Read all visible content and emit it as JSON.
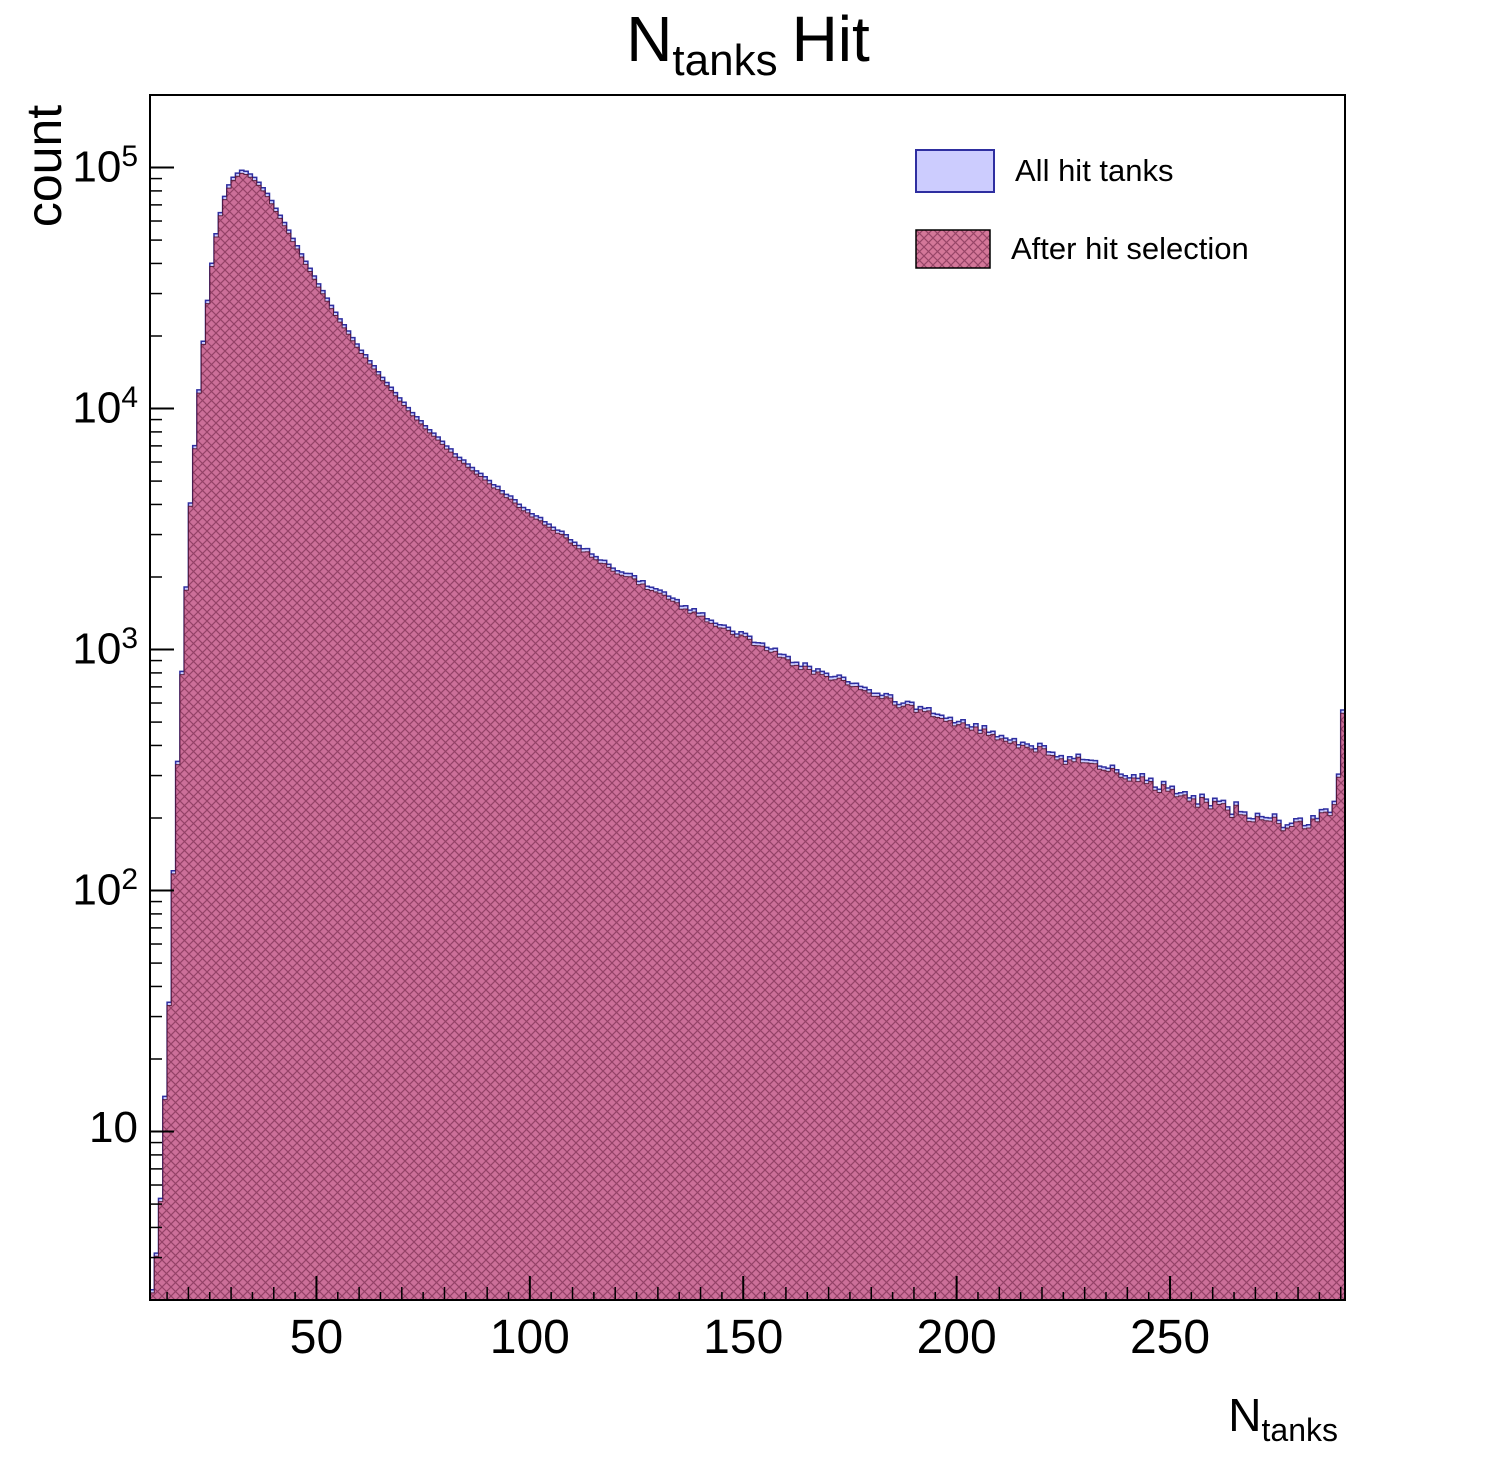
{
  "title": {
    "prefix": "N",
    "subscript": "tanks",
    "suffix": "Hit"
  },
  "y_axis": {
    "label": "count",
    "scale": "log",
    "min": 2,
    "max": 200000,
    "major_ticks": [
      10,
      100,
      1000,
      10000,
      100000
    ]
  },
  "x_axis": {
    "label_prefix": "N",
    "label_subscript": "tanks",
    "min": 11,
    "max": 291,
    "major_ticks": [
      50,
      100,
      150,
      200,
      250
    ],
    "minor_step": 5
  },
  "legend": {
    "items": [
      {
        "label": "All hit tanks",
        "swatch": "solid-lavender",
        "fill": "#ccccfe",
        "stroke": "#2e2ea0"
      },
      {
        "label": "After hit selection",
        "swatch": "crosshatch-pink",
        "fill": "#cd5f87",
        "stroke": "#6e2346"
      }
    ]
  },
  "chart_data": {
    "type": "bar",
    "title": "N_tanks Hit",
    "xlabel": "N_tanks",
    "ylabel": "count",
    "yscale": "log",
    "xlim": [
      11,
      291
    ],
    "ylim": [
      2,
      200000
    ],
    "bin_width": 1,
    "note": "1-wide histogram bins; counts listed as [x, count] anchors, intermediate bins follow log-linear interpolation with Poisson-like scatter; the two histograms overlap almost exactly, with a sharp peak near x=33 and an overflow-style spike in the last bin near x=290",
    "series": [
      {
        "name": "All hit tanks",
        "scale": 1.0,
        "anchors": [
          [
            11,
            2
          ],
          [
            12,
            3
          ],
          [
            13,
            6
          ],
          [
            14,
            15
          ],
          [
            15,
            40
          ],
          [
            16,
            120
          ],
          [
            17,
            350
          ],
          [
            18,
            800
          ],
          [
            19,
            1800
          ],
          [
            20,
            4000
          ],
          [
            21,
            7000
          ],
          [
            22,
            12000
          ],
          [
            23,
            19000
          ],
          [
            24,
            28000
          ],
          [
            25,
            40000
          ],
          [
            26,
            53000
          ],
          [
            27,
            65000
          ],
          [
            28,
            76000
          ],
          [
            29,
            85000
          ],
          [
            30,
            91000
          ],
          [
            31,
            95000
          ],
          [
            32,
            97500
          ],
          [
            33,
            96500
          ],
          [
            34,
            94000
          ],
          [
            35,
            91000
          ],
          [
            36,
            87000
          ],
          [
            38,
            78000
          ],
          [
            40,
            68000
          ],
          [
            42,
            59000
          ],
          [
            44,
            51000
          ],
          [
            46,
            44000
          ],
          [
            48,
            38000
          ],
          [
            50,
            33000
          ],
          [
            55,
            23500
          ],
          [
            60,
            17500
          ],
          [
            65,
            13500
          ],
          [
            70,
            10500
          ],
          [
            75,
            8500
          ],
          [
            80,
            7000
          ],
          [
            85,
            5900
          ],
          [
            90,
            5000
          ],
          [
            95,
            4300
          ],
          [
            100,
            3700
          ],
          [
            105,
            3200
          ],
          [
            110,
            2800
          ],
          [
            115,
            2450
          ],
          [
            120,
            2150
          ],
          [
            125,
            1950
          ],
          [
            130,
            1750
          ],
          [
            135,
            1550
          ],
          [
            140,
            1400
          ],
          [
            145,
            1250
          ],
          [
            150,
            1130
          ],
          [
            155,
            1020
          ],
          [
            160,
            930
          ],
          [
            165,
            850
          ],
          [
            170,
            790
          ],
          [
            175,
            730
          ],
          [
            180,
            670
          ],
          [
            185,
            620
          ],
          [
            190,
            580
          ],
          [
            195,
            540
          ],
          [
            200,
            505
          ],
          [
            205,
            470
          ],
          [
            210,
            440
          ],
          [
            215,
            415
          ],
          [
            220,
            390
          ],
          [
            225,
            365
          ],
          [
            230,
            345
          ],
          [
            235,
            325
          ],
          [
            240,
            305
          ],
          [
            245,
            285
          ],
          [
            250,
            265
          ],
          [
            255,
            248
          ],
          [
            260,
            232
          ],
          [
            265,
            218
          ],
          [
            270,
            205
          ],
          [
            275,
            196
          ],
          [
            280,
            194
          ],
          [
            284,
            198
          ],
          [
            287,
            215
          ],
          [
            288,
            240
          ],
          [
            289,
            300
          ],
          [
            290,
            550
          ]
        ]
      },
      {
        "name": "After hit selection",
        "scale": 0.97,
        "anchors": null,
        "follows": "All hit tanks"
      }
    ]
  }
}
